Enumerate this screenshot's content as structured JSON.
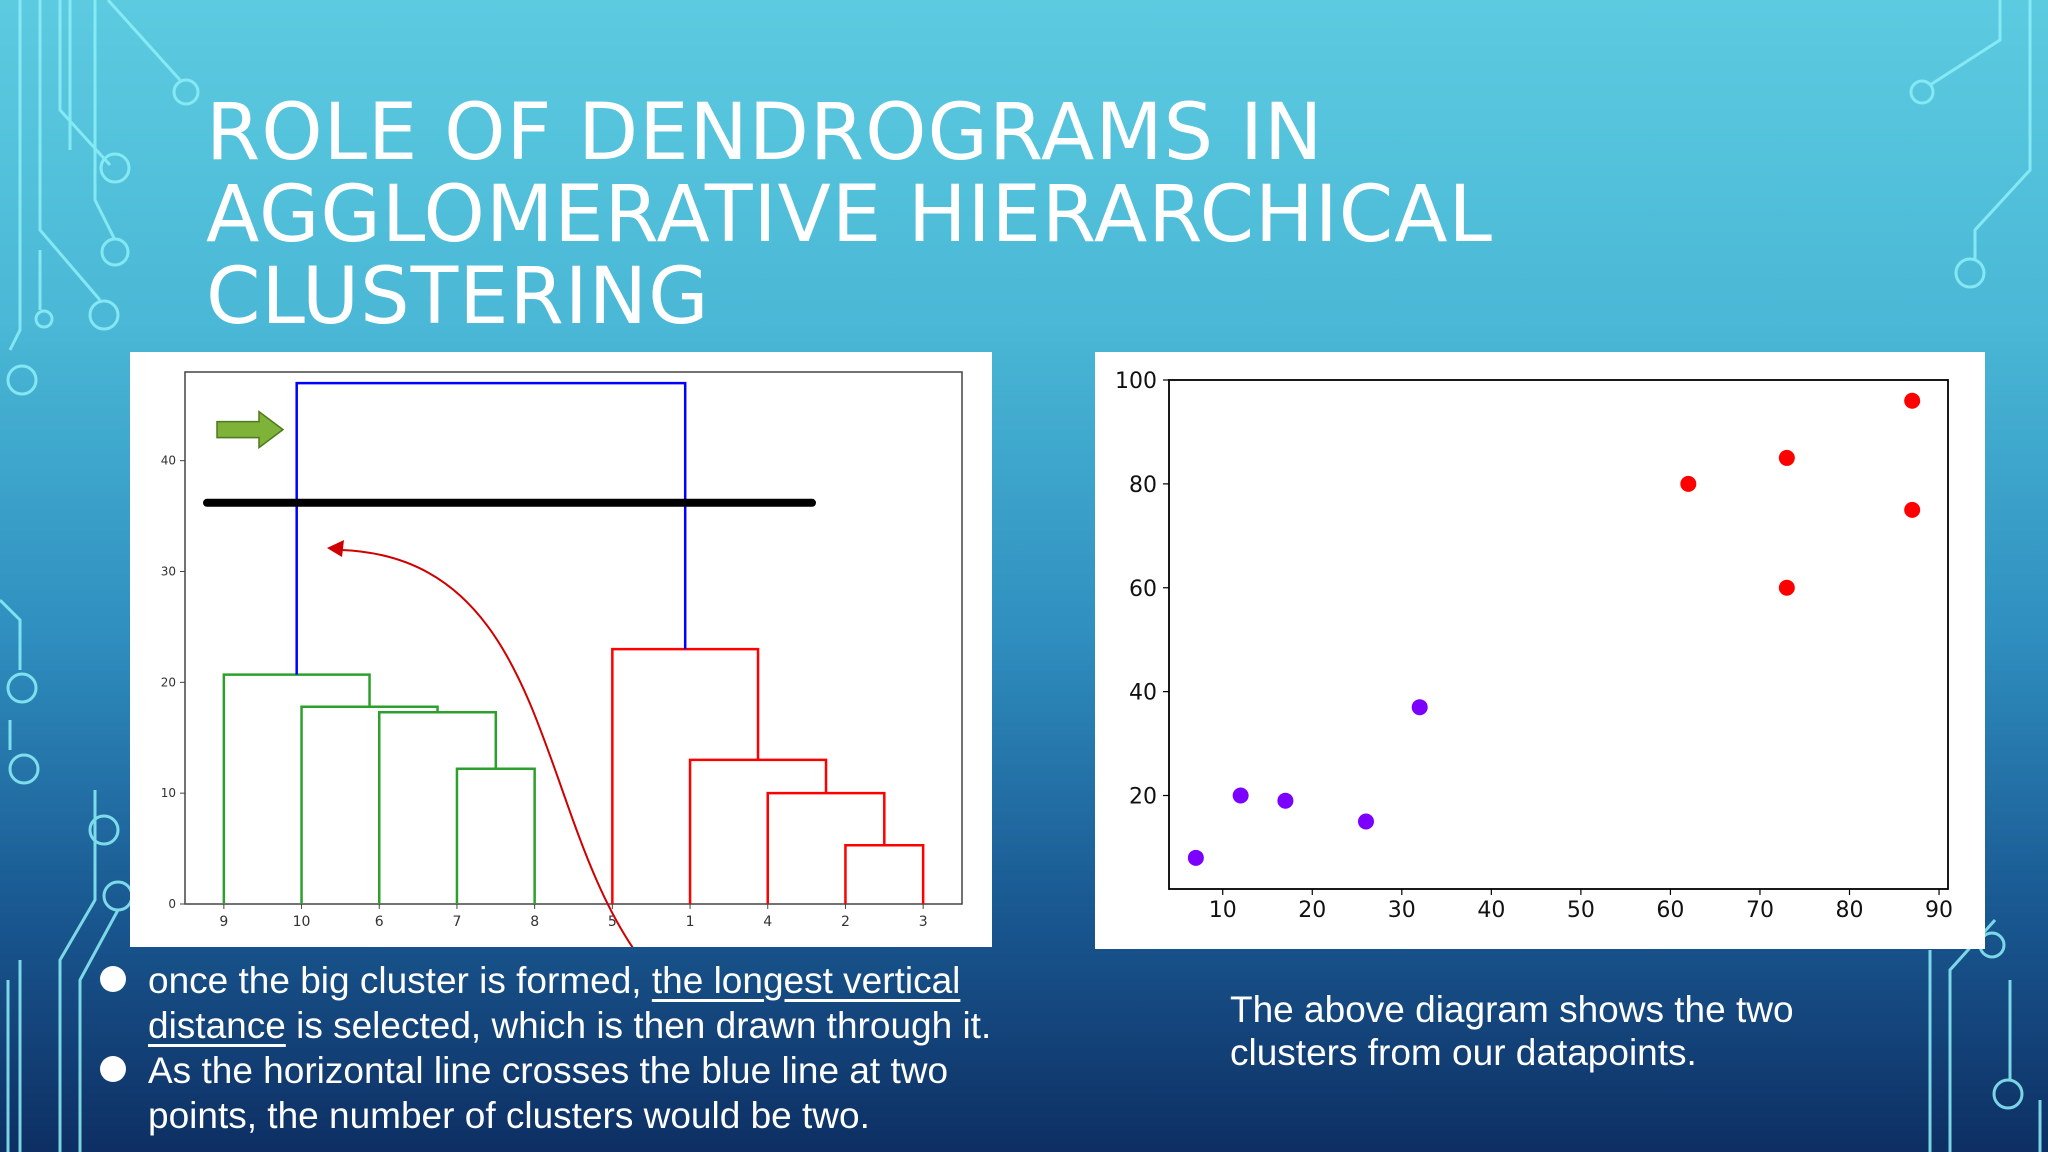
{
  "slide": {
    "title": "ROLE OF DENDROGRAMS IN AGGLOMERATIVE HIERARCHICAL CLUSTERING",
    "bullets": [
      {
        "pre": "once the big cluster is formed, ",
        "underlined": "the longest vertical distance",
        "post": " is selected, which is then drawn through it."
      },
      {
        "text": "As the horizontal line crosses the blue line at two points, the number of clusters would be two."
      }
    ],
    "caption": "The above diagram shows the two clusters from our datapoints."
  },
  "colors": {
    "cluster_a": "#2ca02c",
    "cluster_b": "#ff0000",
    "link": "#0000ff",
    "cut_line": "#000000",
    "arrow": "#7fb239",
    "curve": "#d00000",
    "scatter_a": "#7b00ff",
    "scatter_b": "#ff0000"
  },
  "chart_data": [
    {
      "type": "dendrogram",
      "leaf_labels": [
        "9",
        "10",
        "6",
        "7",
        "8",
        "5",
        "1",
        "4",
        "2",
        "3"
      ],
      "yticks": [
        0,
        10,
        20,
        30,
        40
      ],
      "ylim": [
        0,
        48
      ],
      "merges": [
        {
          "leaves": [
            "7",
            "8"
          ],
          "height": 12.2,
          "cluster": "A"
        },
        {
          "leaves": [
            "6",
            "7-8"
          ],
          "height": 17.3,
          "cluster": "A"
        },
        {
          "leaves": [
            "10",
            "6-7-8"
          ],
          "height": 17.8,
          "cluster": "A"
        },
        {
          "leaves": [
            "9",
            "10-6-7-8"
          ],
          "height": 20.7,
          "cluster": "A"
        },
        {
          "leaves": [
            "2",
            "3"
          ],
          "height": 5.3,
          "cluster": "B"
        },
        {
          "leaves": [
            "4",
            "2-3"
          ],
          "height": 10.0,
          "cluster": "B"
        },
        {
          "leaves": [
            "1",
            "4-2-3"
          ],
          "height": 13.0,
          "cluster": "B"
        },
        {
          "leaves": [
            "5",
            "1-4-2-3"
          ],
          "height": 23.0,
          "cluster": "B"
        },
        {
          "leaves": [
            "A",
            "B"
          ],
          "height": 47.0,
          "cluster": "link"
        }
      ],
      "cut_height": 36.2,
      "annotations": [
        "green arrow pointing at the longest vertical distance",
        "red curved arrow from the bullet text to the cut line"
      ]
    },
    {
      "type": "scatter",
      "xticks": [
        10,
        20,
        30,
        40,
        50,
        60,
        70,
        80,
        90
      ],
      "yticks": [
        20,
        40,
        60,
        80,
        100
      ],
      "xlim": [
        4,
        91
      ],
      "ylim": [
        2,
        100
      ],
      "series": [
        {
          "cluster": "A",
          "points": [
            [
              7,
              8
            ],
            [
              12,
              20
            ],
            [
              17,
              19
            ],
            [
              26,
              15
            ],
            [
              32,
              37
            ]
          ]
        },
        {
          "cluster": "B",
          "points": [
            [
              62,
              80
            ],
            [
              73,
              85
            ],
            [
              73,
              60
            ],
            [
              87,
              96
            ],
            [
              87,
              75
            ]
          ]
        }
      ]
    }
  ]
}
